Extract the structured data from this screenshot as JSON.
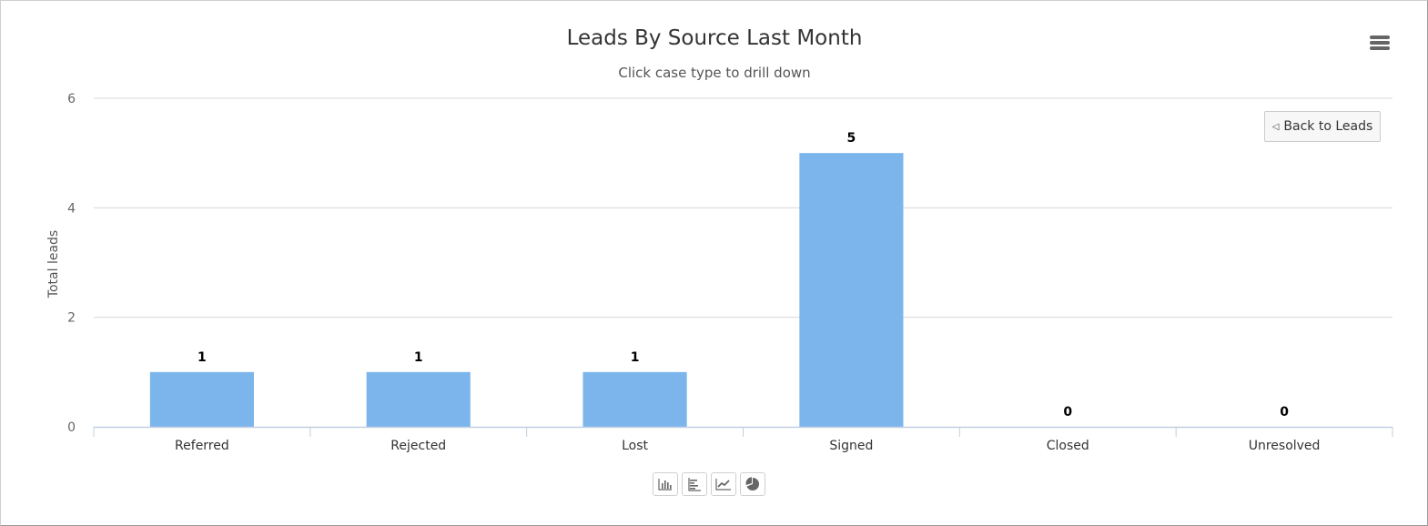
{
  "chart_data": {
    "type": "bar",
    "title": "Leads By Source Last Month",
    "subtitle": "Click case type to drill down",
    "ylabel": "Total leads",
    "xlabel": "",
    "categories": [
      "Referred",
      "Rejected",
      "Lost",
      "Signed",
      "Closed",
      "Unresolved"
    ],
    "values": [
      1,
      1,
      1,
      5,
      0,
      0
    ],
    "ylim": [
      0,
      6
    ],
    "yticks": [
      0,
      2,
      4,
      6
    ],
    "grid": true,
    "data_labels": true,
    "bar_color": "#7cb5ec"
  },
  "controls": {
    "back_label": "Back to Leads",
    "back_arrow": "◁",
    "menu_icon": "hamburger-menu-icon",
    "chart_type_icons": [
      "column-chart-icon",
      "bar-chart-icon",
      "line-chart-icon",
      "pie-chart-icon"
    ]
  },
  "colors": {
    "bar": "#7cb5ec",
    "grid": "#d8d8d8",
    "axis": "#c0d0e0",
    "text": "#333333",
    "icon": "#666666"
  }
}
